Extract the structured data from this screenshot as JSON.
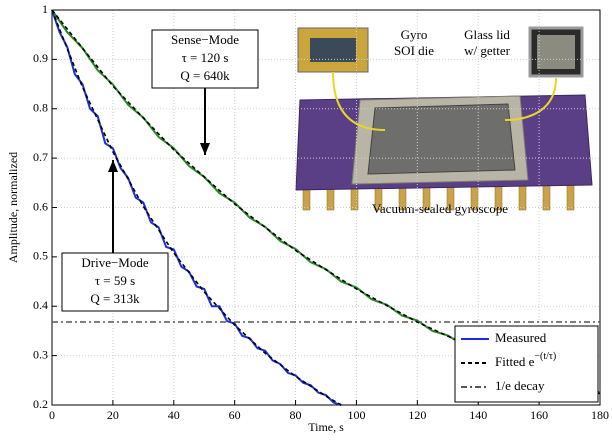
{
  "chart_data": {
    "type": "line",
    "x_label": "Time, s",
    "y_label": "Amplitude, normalized",
    "xlim": [
      0,
      180
    ],
    "ylim": [
      0.2,
      1
    ],
    "xticks": [
      0,
      20,
      40,
      60,
      80,
      100,
      120,
      140,
      160,
      180
    ],
    "yticks": [
      0.2,
      0.3,
      0.4,
      0.5,
      0.6,
      0.7,
      0.8,
      0.9,
      1
    ],
    "grid": true,
    "legend": "lower right",
    "series": [
      {
        "name": "Measured",
        "color": "#1a2ee0",
        "dash": "solid",
        "x": [
          0,
          2.5,
          5,
          7.5,
          10,
          12.5,
          15,
          17.5,
          20,
          22.5,
          25,
          27.5,
          30,
          32.5,
          35,
          37.5,
          40,
          42.5,
          45,
          47.5,
          50,
          52.5,
          55,
          57.5,
          60,
          62.5,
          65,
          67.5,
          70,
          72.5,
          75,
          77.5,
          80,
          82.5,
          85,
          87.5,
          90,
          92.5,
          95
        ],
        "values": [
          1.0,
          0.955,
          0.925,
          0.87,
          0.85,
          0.8,
          0.785,
          0.73,
          0.72,
          0.68,
          0.66,
          0.62,
          0.61,
          0.57,
          0.56,
          0.52,
          0.515,
          0.48,
          0.47,
          0.44,
          0.435,
          0.4,
          0.4,
          0.37,
          0.365,
          0.34,
          0.335,
          0.315,
          0.31,
          0.29,
          0.283,
          0.265,
          0.26,
          0.245,
          0.24,
          0.225,
          0.22,
          0.205,
          0.2
        ]
      },
      {
        "color": "#2a8a2a",
        "dash": "solid",
        "x": [
          0,
          5,
          10,
          15,
          20,
          25,
          30,
          35,
          40,
          45,
          50,
          55,
          60,
          65,
          70,
          75,
          80,
          85,
          90,
          95,
          100,
          105,
          110,
          115,
          120,
          125,
          130,
          135,
          140,
          145,
          150,
          155,
          160,
          165,
          170,
          175,
          180
        ],
        "values": [
          1.0,
          0.955,
          0.923,
          0.878,
          0.849,
          0.808,
          0.782,
          0.743,
          0.72,
          0.684,
          0.662,
          0.629,
          0.61,
          0.579,
          0.561,
          0.532,
          0.516,
          0.489,
          0.475,
          0.45,
          0.438,
          0.414,
          0.403,
          0.381,
          0.371,
          0.35,
          0.341,
          0.322,
          0.314,
          0.296,
          0.29,
          0.272,
          0.267,
          0.25,
          0.246,
          0.23,
          0.226
        ]
      },
      {
        "name": "Fitted e",
        "exponent": "−(t/τ)",
        "color": "#000000",
        "dash": "dashed",
        "x": [
          0,
          10,
          20,
          30,
          40,
          50,
          60,
          70,
          80,
          90,
          95
        ],
        "values": [
          1.0,
          0.844,
          0.713,
          0.602,
          0.508,
          0.429,
          0.362,
          0.305,
          0.258,
          0.218,
          0.2
        ]
      },
      {
        "color": "#000000",
        "dash": "dashed",
        "x": [
          0,
          20,
          40,
          60,
          80,
          100,
          120,
          140,
          160,
          180
        ],
        "values": [
          1.0,
          0.846,
          0.717,
          0.607,
          0.513,
          0.435,
          0.368,
          0.311,
          0.264,
          0.223
        ]
      }
    ],
    "reference_line": {
      "name": "1/e decay",
      "value": 0.368,
      "color": "#555555",
      "dash": "dashdot"
    },
    "annotations": {
      "sense": [
        "Sense−Mode",
        "τ = 120 s",
        "Q = 640k"
      ],
      "drive": [
        "Drive−Mode",
        "τ = 59 s",
        "Q = 313k"
      ]
    },
    "inset_labels": {
      "die": [
        "Gyro",
        "SOI die"
      ],
      "lid": [
        "Glass lid",
        "w/ getter"
      ],
      "caption": "Vacuum-sealed gyroscope"
    }
  }
}
